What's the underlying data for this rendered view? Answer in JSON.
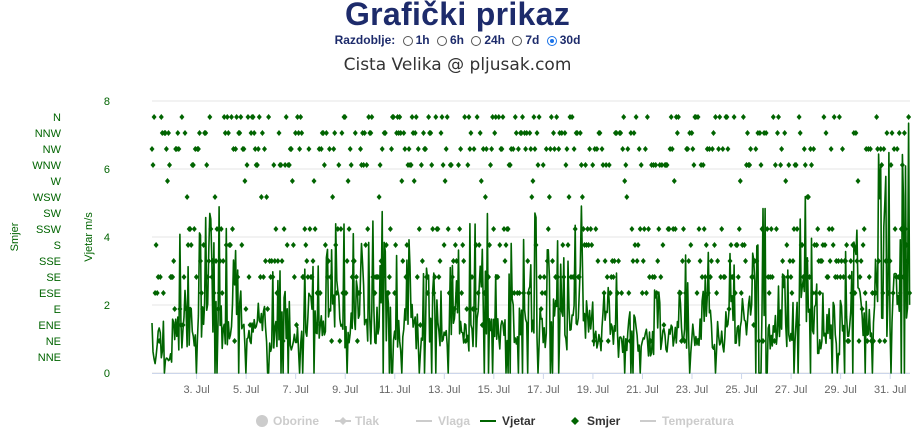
{
  "page": {
    "heading": "Grafički prikaz",
    "period_label": "Razdoblje:",
    "periods": [
      {
        "label": "1h",
        "selected": false
      },
      {
        "label": "6h",
        "selected": false
      },
      {
        "label": "24h",
        "selected": false
      },
      {
        "label": "7d",
        "selected": false
      },
      {
        "label": "30d",
        "selected": true
      }
    ]
  },
  "colors": {
    "title": "#1d2b6b",
    "series": "#006400",
    "hidden_legend": "#cccccc",
    "grid": "#e6e6e6"
  },
  "chart_data": {
    "type": "line",
    "title": "Cista Velika @ pljusak.com",
    "x_ticks": [
      "3. Jul",
      "5. Jul",
      "7. Jul",
      "9. Jul",
      "11. Jul",
      "13. Jul",
      "15. Jul",
      "17. Jul",
      "19. Jul",
      "21. Jul",
      "23. Jul",
      "25. Jul",
      "27. Jul",
      "29. Jul",
      "31. Jul"
    ],
    "x_range_days": [
      1.2,
      31.8
    ],
    "y_axes": [
      {
        "label": "Vjetar m/s",
        "ticks": [
          0,
          2,
          4,
          6,
          8
        ],
        "range": [
          0,
          8
        ]
      },
      {
        "label": "Smjer",
        "categories": [
          "NNE",
          "NE",
          "ENE",
          "E",
          "ESE",
          "SE",
          "SSE",
          "S",
          "SSW",
          "SW",
          "WSW",
          "W",
          "WNW",
          "NW",
          "NNW",
          "N"
        ]
      }
    ],
    "legend": [
      {
        "name": "Oborine",
        "visible": false,
        "symbol": "circle"
      },
      {
        "name": "Tlak",
        "visible": false,
        "symbol": "line-diamond"
      },
      {
        "name": "Vlaga",
        "visible": false,
        "symbol": "line"
      },
      {
        "name": "Vjetar",
        "visible": true,
        "symbol": "line"
      },
      {
        "name": "Smjer",
        "visible": true,
        "symbol": "diamond"
      },
      {
        "name": "Temperatura",
        "visible": false,
        "symbol": "line"
      }
    ],
    "series": [
      {
        "name": "Vjetar",
        "unit": "m/s",
        "sampling": "hourly",
        "daily_pattern": {
          "day": [
            1,
            2,
            3,
            4,
            5,
            6,
            7,
            8,
            9,
            10,
            11,
            12,
            13,
            14,
            15,
            16,
            17,
            18,
            19,
            20,
            21,
            22,
            23,
            24,
            25,
            26,
            27,
            28,
            29,
            30,
            31
          ],
          "peak_speed": [
            1.6,
            4.2,
            5.3,
            4.3,
            4.0,
            3.8,
            3.5,
            4.6,
            4.8,
            5.0,
            4.4,
            3.4,
            3.8,
            5.0,
            4.1,
            4.8,
            4.0,
            5.3,
            4.1,
            2.7,
            3.3,
            3.6,
            4.0,
            3.9,
            6.1,
            4.3,
            5.3,
            3.0,
            5.1,
            6.8,
            7.5
          ]
        }
      },
      {
        "name": "Smjer",
        "unit": "compass sector",
        "sampling": "hourly",
        "dominant_sectors": [
          "N",
          "NNW",
          "NW",
          "WNW",
          "W",
          "WSW",
          "SSW",
          "S",
          "SSE",
          "SE",
          "ESE",
          "E",
          "ENE",
          "NE"
        ]
      }
    ]
  }
}
